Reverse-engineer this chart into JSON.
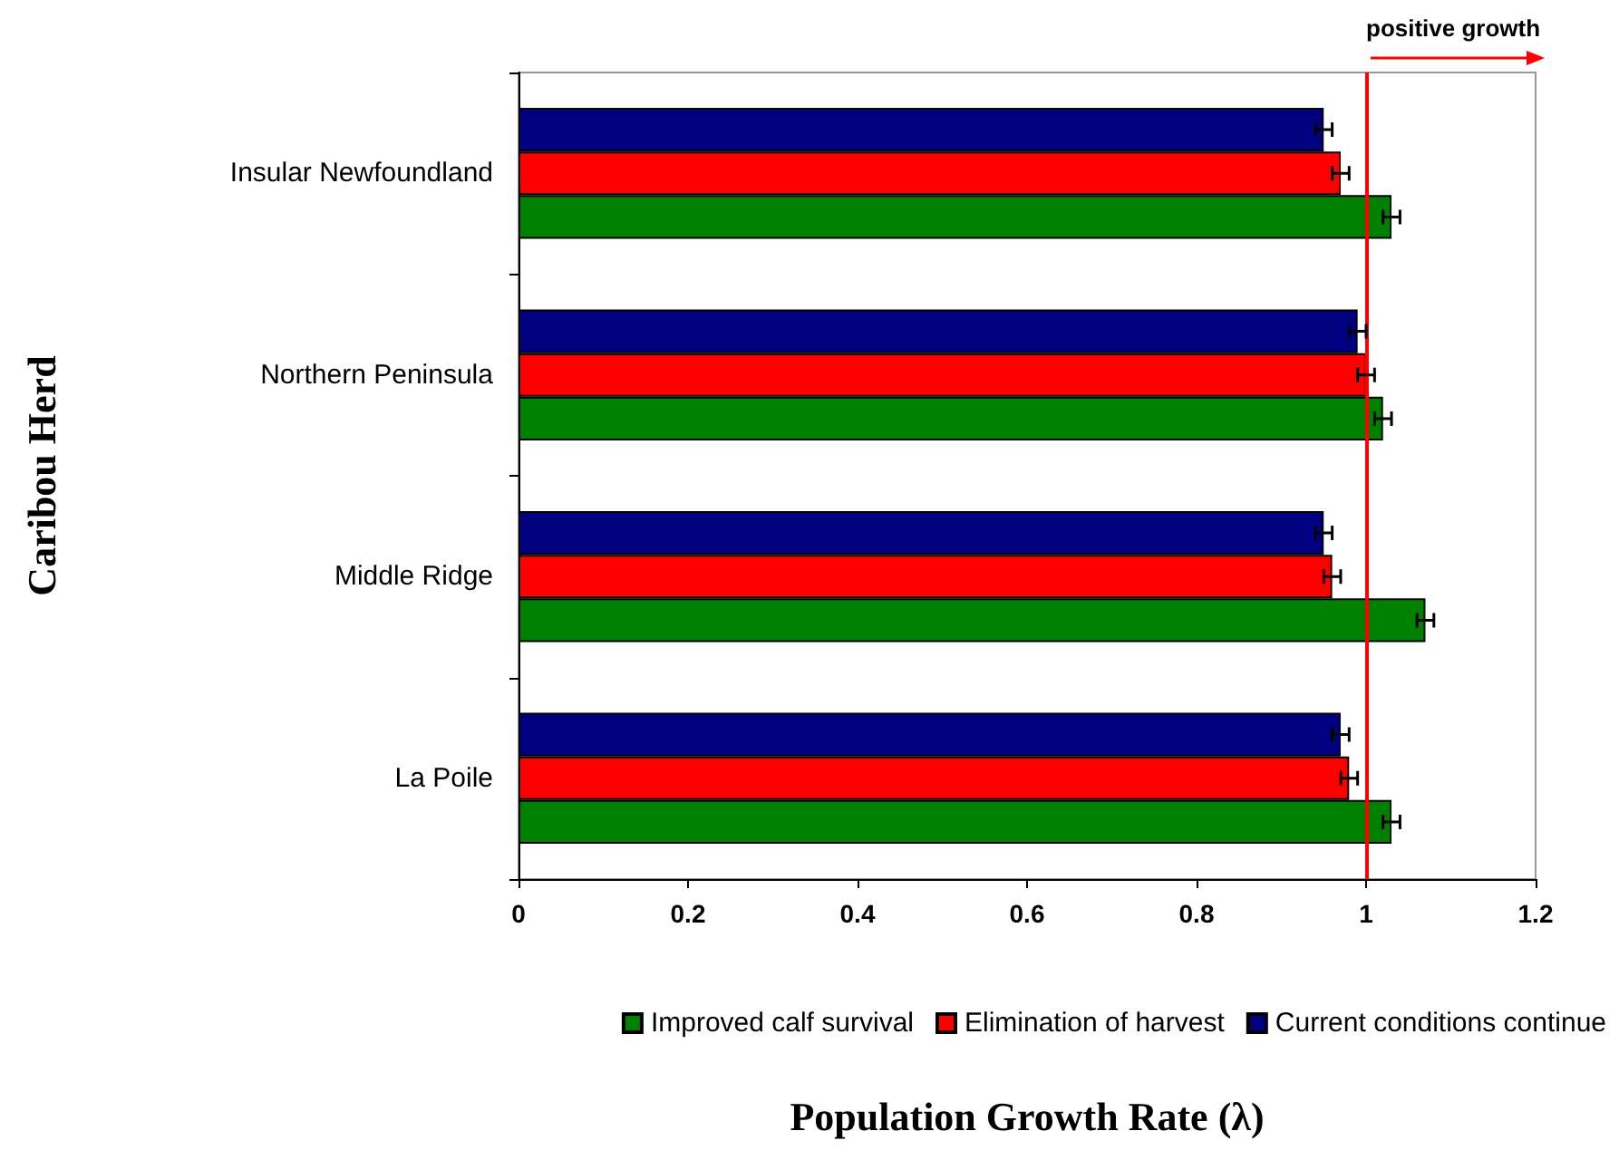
{
  "chart_data": {
    "type": "bar",
    "orientation": "horizontal",
    "xlabel": "Population Growth Rate (λ)",
    "ylabel": "Caribou Herd",
    "categories": [
      "Insular Newfoundland",
      "Northern Peninsula",
      "Middle Ridge",
      "La Poile"
    ],
    "series": [
      {
        "name": "Current conditions continue",
        "color": "#000080",
        "values": [
          0.95,
          0.99,
          0.95,
          0.97
        ],
        "errors": [
          0.01,
          0.01,
          0.01,
          0.01
        ]
      },
      {
        "name": "Elimination of harvest",
        "color": "#ff0000",
        "values": [
          0.97,
          1.0,
          0.96,
          0.98
        ],
        "errors": [
          0.01,
          0.01,
          0.01,
          0.01
        ]
      },
      {
        "name": "Improved calf survival",
        "color": "#008000",
        "values": [
          1.03,
          1.02,
          1.07,
          1.03
        ],
        "errors": [
          0.01,
          0.01,
          0.01,
          0.01
        ]
      }
    ],
    "xlim": [
      0,
      1.2
    ],
    "xticks": [
      0,
      0.2,
      0.4,
      0.6,
      0.8,
      1,
      1.2
    ],
    "ref_lines": [
      {
        "axis": "x",
        "value": 1,
        "label": "positive growth",
        "color": "#ff0000"
      }
    ],
    "grid": false,
    "legend": "bottom"
  }
}
